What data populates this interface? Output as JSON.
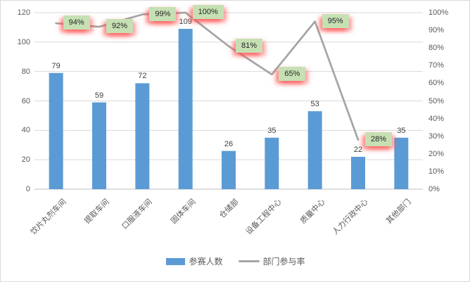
{
  "chart_data": {
    "type": "bar",
    "subtype": "bar-line-combo",
    "title": "",
    "categories": [
      "饮片丸剂车间",
      "提取车间",
      "口服液车间",
      "固体车间",
      "仓储部",
      "设备工程中心",
      "质量中心",
      "人力行政中心",
      "其他部门"
    ],
    "series": [
      {
        "name": "参赛人数",
        "type": "bar",
        "axis": "left",
        "color": "#5b9bd5",
        "values": [
          79,
          59,
          72,
          109,
          26,
          35,
          53,
          22,
          35
        ]
      },
      {
        "name": "部门参与率",
        "type": "line",
        "axis": "right",
        "color": "#a6a6a6",
        "values": [
          94,
          92,
          99,
          100,
          81,
          65,
          95,
          28,
          null
        ],
        "point_labels": [
          "94%",
          "92%",
          "99%",
          "100%",
          "81%",
          "65%",
          "95%",
          "28%",
          null
        ]
      }
    ],
    "left_axis": {
      "min": 0,
      "max": 120,
      "step": 20,
      "ticks": [
        "0",
        "20",
        "40",
        "60",
        "80",
        "100",
        "120"
      ]
    },
    "right_axis": {
      "min": 0,
      "max": 100,
      "step": 10,
      "ticks": [
        "0%",
        "10%",
        "20%",
        "30%",
        "40%",
        "50%",
        "60%",
        "70%",
        "80%",
        "90%",
        "100%"
      ]
    },
    "grid": true,
    "legend_position": "bottom",
    "style": {
      "bar_color": "#5b9bd5",
      "line_color": "#a6a6a6",
      "gridline_color": "#d9d9d9",
      "baseline_color": "#bfbfbf",
      "axis_text_color": "#595959",
      "value_text_color": "#404040",
      "rate_label_bg": "#c6e0b4",
      "rate_label_glow": "#ff4b4b"
    }
  }
}
